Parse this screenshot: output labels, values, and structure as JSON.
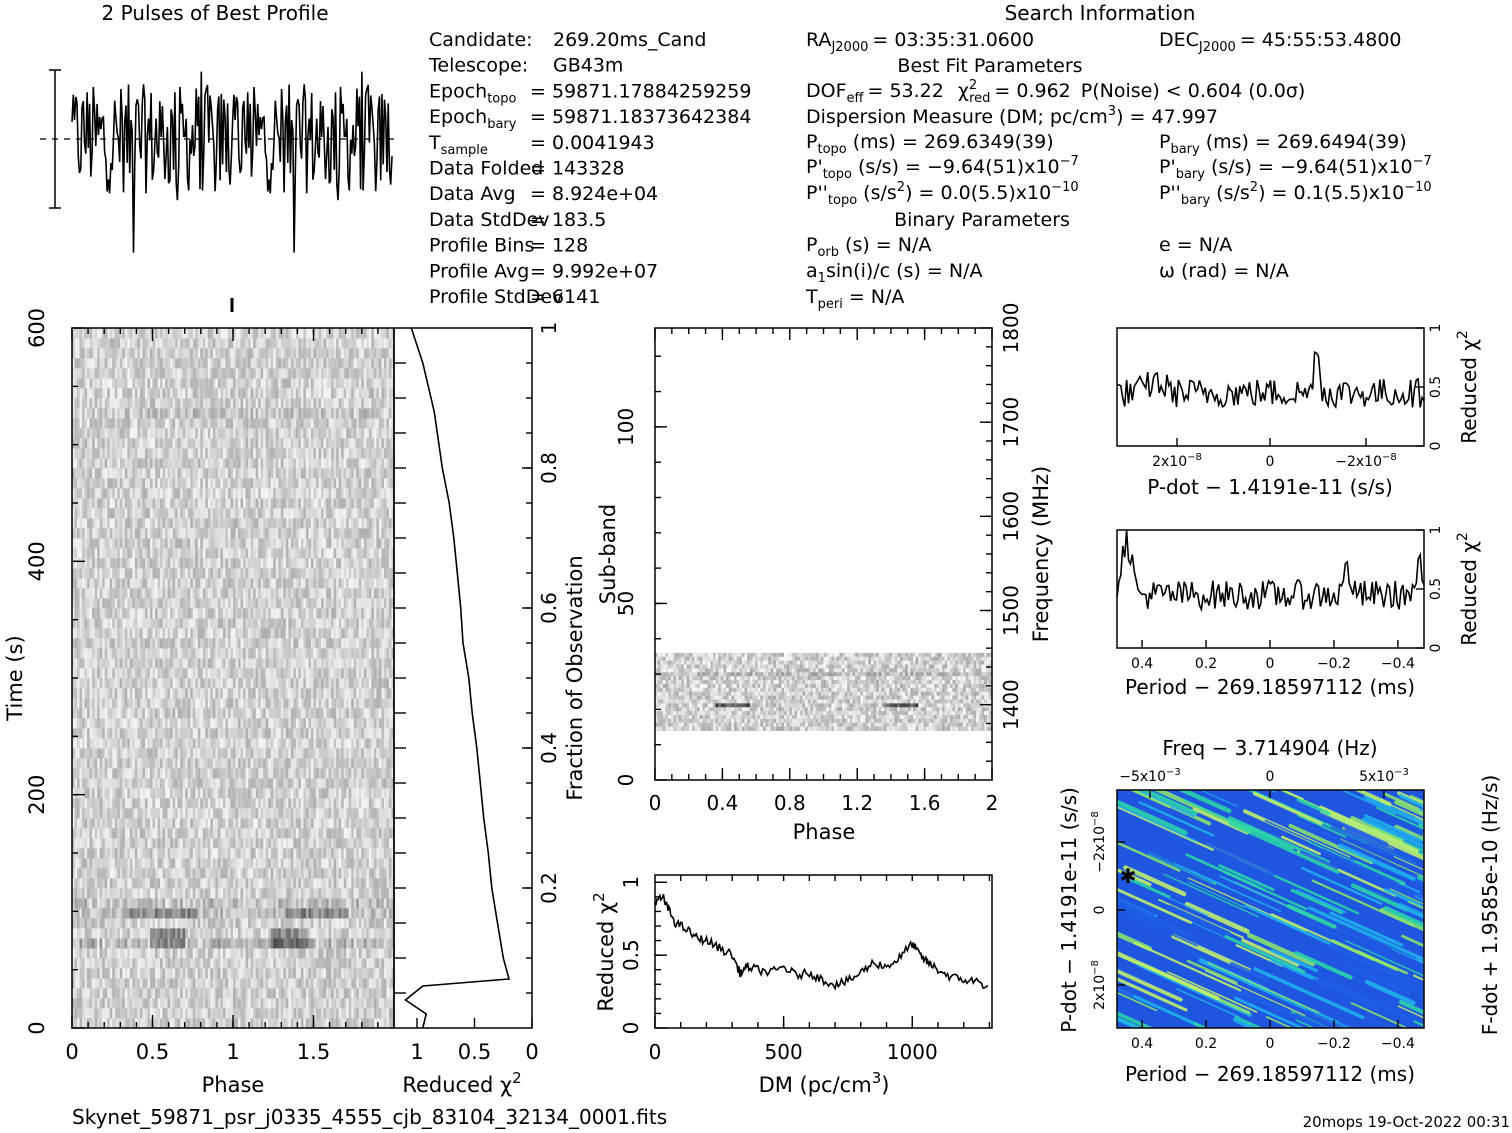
{
  "header": {
    "profile_title": "2 Pulses of Best Profile",
    "search_title": "Search Information",
    "best_fit_title": "Best Fit Parameters",
    "binary_title": "Binary Parameters",
    "filename": "Skynet_59871_psr_j0335_4555_cjb_83104_32134_0001.fits",
    "footer": "20mops 19-Oct-2022 00:31"
  },
  "info_left": [
    {
      "label": "Candidate:",
      "sub": "",
      "value": "269.20ms_Cand"
    },
    {
      "label": "Telescope:",
      "sub": "",
      "value": "GB43m"
    },
    {
      "label": "Epoch",
      "sub": "topo",
      "value": "= 59871.17884259259"
    },
    {
      "label": "Epoch",
      "sub": "bary",
      "value": "= 59871.18373642384"
    },
    {
      "label": "T",
      "sub": "sample",
      "value": "=    0.0041943"
    },
    {
      "label": "Data Folded",
      "sub": "",
      "value": "=    143328"
    },
    {
      "label": "Data Avg",
      "sub": "",
      "value": "=    8.924e+04"
    },
    {
      "label": "Data StdDev",
      "sub": "",
      "value": "=    183.5"
    },
    {
      "label": "Profile Bins",
      "sub": "",
      "value": "=    128"
    },
    {
      "label": "Profile Avg",
      "sub": "",
      "value": "=    9.992e+07"
    },
    {
      "label": "Profile StdDev",
      "sub": "",
      "value": "=    6141"
    }
  ],
  "info_right": {
    "ra": "RA",
    "ra_sub": "J2000",
    "ra_val": "= 03:35:31.0600",
    "dec": "DEC",
    "dec_sub": "J2000",
    "dec_val": "= 45:55:53.4800",
    "dof": "DOF",
    "dof_sub": "eff",
    "dof_val": "= 53.22",
    "chi": "χ",
    "chi_sup": "2",
    "chi_sub": "red",
    "chi_val": "= 0.962",
    "pnoise": "P(Noise) < 0.604   (0.0σ)",
    "dm_label": "Dispersion Measure (DM; pc/cm",
    "dm_sup": "3",
    "dm_val": ") = 47.997",
    "ptopo": "P",
    "ptopo_sub": "topo",
    "ptopo_val": "(ms)  =   269.6349(39)",
    "pbary": "P",
    "pbary_sub": "bary",
    "pbary_val": "(ms)  =   269.6494(39)",
    "pdtopo": "P'",
    "pdtopo_sub": "topo",
    "pdtopo_val": "(s/s) = −9.64(51)x10",
    "pdtopo_exp": "−7",
    "pdbary": "P'",
    "pdbary_sub": "bary",
    "pdbary_val": "(s/s) = −9.64(51)x10",
    "pdbary_exp": "−7",
    "pddtopo": "P''",
    "pddtopo_sub": "topo",
    "pddtopo_val": "(s/s",
    "pddtopo_val2": ") = 0.0(5.5)x10",
    "pddtopo_exp": "−10",
    "pddbary": "P''",
    "pddbary_sub": "bary",
    "pddbary_val": "(s/s",
    "pddbary_val2": ") =  0.1(5.5)x10",
    "pddbary_exp": "−10",
    "porb": "P",
    "porb_sub": "orb",
    "porb_val": "(s) = N/A",
    "ecc": "e = N/A",
    "asini": "a",
    "asini_sub": "1",
    "asini_val": "sin(i)/c (s) = N/A",
    "omega": "ω (rad) = N/A",
    "tperi": "T",
    "tperi_sub": "peri",
    "tperi_val": "= N/A"
  },
  "chart_data": [
    {
      "type": "line",
      "panel": "profile",
      "title": "2 Pulses of Best Profile",
      "x_range": [
        0,
        2
      ],
      "bins": 256
    },
    {
      "type": "heatmap",
      "panel": "time_phase",
      "xlabel": "Phase",
      "ylabel": "Time (s)",
      "xticks": [
        "0",
        "0.5",
        "1",
        "1.5"
      ],
      "yticks": [
        "0",
        "200",
        "400",
        "600"
      ],
      "xlim": [
        0,
        2
      ],
      "ylim": [
        0,
        600
      ]
    },
    {
      "type": "line",
      "panel": "fraction_chi2",
      "xlabel": "Reduced χ",
      "xlabel_sup": "2",
      "ylabel": "Fraction of Observation",
      "xticks": [
        "1",
        "0.5",
        "0"
      ],
      "yticks": [
        "0.2",
        "0.4",
        "0.6",
        "0.8",
        "1"
      ],
      "x": [
        0.95,
        0.92,
        1.1,
        0.95,
        0.2,
        0.25,
        0.3,
        0.35,
        0.38,
        0.42,
        0.45,
        0.48,
        0.52,
        0.55,
        0.6,
        0.62,
        0.65,
        0.68,
        0.72,
        0.78,
        0.85,
        0.95,
        1.05
      ],
      "y": [
        0,
        0.02,
        0.04,
        0.06,
        0.07,
        0.1,
        0.15,
        0.2,
        0.25,
        0.3,
        0.35,
        0.4,
        0.45,
        0.5,
        0.55,
        0.6,
        0.65,
        0.7,
        0.75,
        0.8,
        0.88,
        0.95,
        1
      ]
    },
    {
      "type": "heatmap",
      "panel": "subband_phase",
      "xlabel": "Phase",
      "ylabel": "Sub-band",
      "ylabel2": "Frequency (MHz)",
      "xticks": [
        "0",
        "0.4",
        "0.8",
        "1.2",
        "1.6",
        "2"
      ],
      "yticks": [
        "0",
        "50",
        "100"
      ],
      "yticks2": [
        "1400",
        "1500",
        "1600",
        "1700",
        "1800"
      ]
    },
    {
      "type": "line",
      "panel": "dm_chi2",
      "xlabel": "DM (pc/cm",
      "xlabel_sup": "3",
      "xlabel_end": ")",
      "ylabel": "Reduced χ",
      "ylabel_sup": "2",
      "xticks": [
        "0",
        "500",
        "1000"
      ],
      "yticks": [
        "0",
        "0.5",
        "1"
      ],
      "x": [
        0,
        30,
        50,
        80,
        120,
        160,
        200,
        250,
        300,
        330,
        360,
        400,
        450,
        500,
        550,
        600,
        650,
        700,
        750,
        800,
        850,
        900,
        950,
        1000,
        1030,
        1060,
        1100,
        1150,
        1200,
        1250,
        1300
      ],
      "y": [
        0.85,
        0.9,
        0.82,
        0.72,
        0.68,
        0.62,
        0.6,
        0.55,
        0.5,
        0.38,
        0.42,
        0.4,
        0.38,
        0.42,
        0.36,
        0.38,
        0.33,
        0.3,
        0.32,
        0.38,
        0.45,
        0.42,
        0.48,
        0.58,
        0.5,
        0.45,
        0.4,
        0.35,
        0.33,
        0.32,
        0.28
      ]
    },
    {
      "type": "line",
      "panel": "pdot_chi2",
      "xlabel": "P-dot − 1.4191e-11 (s/s)",
      "ylabel": "Reduced χ",
      "ylabel_sup": "2",
      "xticks": [
        "2x10",
        "0",
        "−2x10"
      ],
      "xticks_exp": "−8",
      "yticks": [
        "0",
        "0.5",
        "1"
      ]
    },
    {
      "type": "line",
      "panel": "period_chi2",
      "xlabel": "Period − 269.18597112 (ms)",
      "ylabel": "Reduced χ",
      "ylabel_sup": "2",
      "xticks": [
        "0.4",
        "0.2",
        "0",
        "−0.2",
        "−0.4"
      ],
      "yticks": [
        "0",
        "0.5",
        "1"
      ]
    },
    {
      "type": "heatmap",
      "panel": "p_pdot",
      "title": "Freq − 3.714904 (Hz)",
      "xlabel": "Period − 269.18597112 (ms)",
      "ylabel": "P-dot − 1.4191e-11 (s/s)",
      "ylabel2": "F-dot + 1.9585e-10 (Hz/s)",
      "xticks": [
        "0.4",
        "0.2",
        "0",
        "−0.2",
        "−0.4"
      ],
      "top_ticks": [
        "−5x10",
        "0",
        "5x10"
      ],
      "top_exp": "−3",
      "yticks": [
        "2x10",
        "0",
        "−2x10"
      ],
      "yticks_exp": "−8",
      "colors": [
        "#1f5fe8",
        "#21b4ee",
        "#2dd9a7",
        "#8fe86a",
        "#c8f56a"
      ]
    }
  ]
}
